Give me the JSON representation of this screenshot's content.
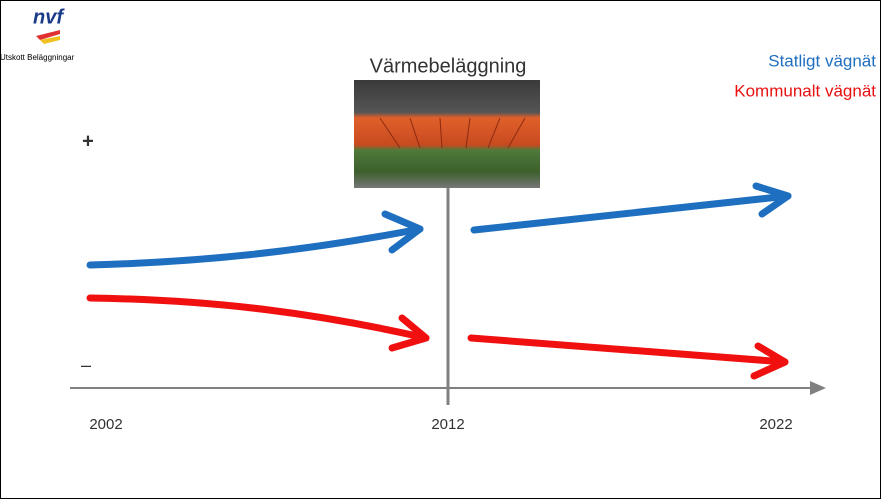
{
  "logo": {
    "text": "nvf",
    "caption": "Utskott Beläggningar"
  },
  "title": "Värmebeläggning",
  "legend": {
    "state": "Statligt vägnät",
    "municipal": "Kommunalt vägnät"
  },
  "axis": {
    "plus": "+",
    "minus": "–",
    "years": [
      "2002",
      "2012",
      "2022"
    ]
  }
}
